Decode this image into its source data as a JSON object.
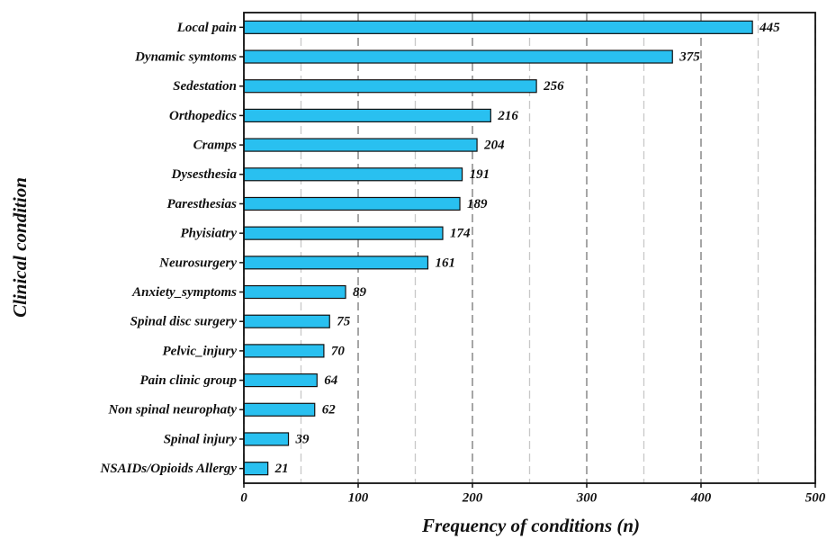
{
  "chart_data": {
    "type": "bar",
    "orientation": "horizontal",
    "xlabel": "Frequency of conditions (n)",
    "ylabel": "Clinical condition",
    "categories": [
      "Local pain",
      "Dynamic symtoms",
      "Sedestation",
      "Orthopedics",
      "Cramps",
      "Dysesthesia",
      "Paresthesias",
      "Phyisiatry",
      "Neurosurgery",
      "Anxiety_symptoms",
      "Spinal disc surgery",
      "Pelvic_injury",
      "Pain clinic group",
      "Non spinal neurophaty",
      "Spinal injury",
      "NSAIDs/Opioids Allergy"
    ],
    "values": [
      445,
      375,
      256,
      216,
      204,
      191,
      189,
      174,
      161,
      89,
      75,
      70,
      64,
      62,
      39,
      21
    ],
    "color": "#29c0f0",
    "xlim": [
      0,
      500
    ],
    "xticks": [
      0,
      100,
      200,
      300,
      400,
      500
    ],
    "minor_xticks": [
      50,
      150,
      250,
      350,
      450
    ],
    "grid": true
  }
}
